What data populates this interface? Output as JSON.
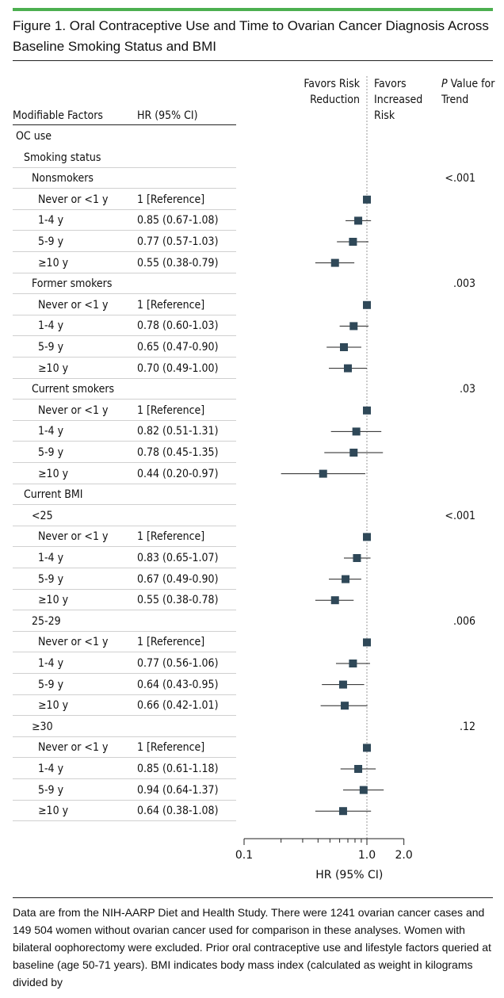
{
  "figure": {
    "title": "Figure 1. Oral Contraceptive Use and Time to Ovarian Cancer Diagnosis Across Baseline Smoking Status and BMI",
    "headers": {
      "factors": "Modifiable Factors",
      "hr": "HR (95% CI)",
      "favors_left": "Favors Risk Reduction",
      "favors_right": "Favors Increased Risk",
      "p_value_italic": "P",
      "p_value_rest": " Value for Trend"
    },
    "footnote": "Data are from the NIH-AARP Diet and Health Study. There were 1241 ovarian cancer cases and 149 504 women without ovarian cancer used for comparison in these analyses. Women with bilateral oophorectomy were excluded. Prior oral contraceptive use and lifestyle factors queried at baseline (age 50-71 years). BMI indicates body mass index (calculated as weight in kilograms divided by"
  },
  "chart_data": {
    "type": "forest",
    "xlabel": "HR (95% CI)",
    "xscale": "log",
    "xlim": [
      0.1,
      2.0
    ],
    "xticks": [
      {
        "value": 0.1,
        "label": "0.1"
      },
      {
        "value": 1.0,
        "label": "1.0"
      },
      {
        "value": 2.0,
        "label": "2.0"
      }
    ],
    "reference_line": 1.0,
    "rows": [
      {
        "label": "OC use",
        "level": 0
      },
      {
        "label": "Smoking status",
        "level": 1
      },
      {
        "label": "Nonsmokers",
        "level": 2,
        "p": "<.001"
      },
      {
        "label": "Never or <1 y",
        "level": 3,
        "hr_text": "1 [Reference]",
        "hr": 1.0
      },
      {
        "label": "1-4 y",
        "level": 3,
        "hr_text": "0.85 (0.67-1.08)",
        "hr": 0.85,
        "lo": 0.67,
        "hi": 1.08
      },
      {
        "label": "5-9 y",
        "level": 3,
        "hr_text": "0.77 (0.57-1.03)",
        "hr": 0.77,
        "lo": 0.57,
        "hi": 1.03
      },
      {
        "label": "≥10 y",
        "level": 3,
        "hr_text": "0.55 (0.38-0.79)",
        "hr": 0.55,
        "lo": 0.38,
        "hi": 0.79
      },
      {
        "label": "Former smokers",
        "level": 2,
        "p": ".003"
      },
      {
        "label": "Never or <1 y",
        "level": 3,
        "hr_text": "1 [Reference]",
        "hr": 1.0
      },
      {
        "label": "1-4 y",
        "level": 3,
        "hr_text": "0.78 (0.60-1.03)",
        "hr": 0.78,
        "lo": 0.6,
        "hi": 1.03
      },
      {
        "label": "5-9 y",
        "level": 3,
        "hr_text": "0.65 (0.47-0.90)",
        "hr": 0.65,
        "lo": 0.47,
        "hi": 0.9
      },
      {
        "label": "≥10 y",
        "level": 3,
        "hr_text": "0.70 (0.49-1.00)",
        "hr": 0.7,
        "lo": 0.49,
        "hi": 1.0
      },
      {
        "label": "Current smokers",
        "level": 2,
        "p": ".03"
      },
      {
        "label": "Never or <1 y",
        "level": 3,
        "hr_text": "1 [Reference]",
        "hr": 1.0
      },
      {
        "label": "1-4 y",
        "level": 3,
        "hr_text": "0.82 (0.51-1.31)",
        "hr": 0.82,
        "lo": 0.51,
        "hi": 1.31
      },
      {
        "label": "5-9 y",
        "level": 3,
        "hr_text": "0.78 (0.45-1.35)",
        "hr": 0.78,
        "lo": 0.45,
        "hi": 1.35
      },
      {
        "label": "≥10 y",
        "level": 3,
        "hr_text": "0.44 (0.20-0.97)",
        "hr": 0.44,
        "lo": 0.2,
        "hi": 0.97
      },
      {
        "label": "Current BMI",
        "level": 1
      },
      {
        "label": "<25",
        "level": 2,
        "p": "<.001"
      },
      {
        "label": "Never or <1 y",
        "level": 3,
        "hr_text": "1 [Reference]",
        "hr": 1.0
      },
      {
        "label": "1-4 y",
        "level": 3,
        "hr_text": "0.83 (0.65-1.07)",
        "hr": 0.83,
        "lo": 0.65,
        "hi": 1.07
      },
      {
        "label": "5-9 y",
        "level": 3,
        "hr_text": "0.67 (0.49-0.90)",
        "hr": 0.67,
        "lo": 0.49,
        "hi": 0.9
      },
      {
        "label": "≥10 y",
        "level": 3,
        "hr_text": "0.55 (0.38-0.78)",
        "hr": 0.55,
        "lo": 0.38,
        "hi": 0.78
      },
      {
        "label": "25-29",
        "level": 2,
        "p": ".006"
      },
      {
        "label": "Never or <1 y",
        "level": 3,
        "hr_text": "1 [Reference]",
        "hr": 1.0
      },
      {
        "label": "1-4 y",
        "level": 3,
        "hr_text": "0.77 (0.56-1.06)",
        "hr": 0.77,
        "lo": 0.56,
        "hi": 1.06
      },
      {
        "label": "5-9 y",
        "level": 3,
        "hr_text": "0.64 (0.43-0.95)",
        "hr": 0.64,
        "lo": 0.43,
        "hi": 0.95
      },
      {
        "label": "≥10 y",
        "level": 3,
        "hr_text": "0.66 (0.42-1.01)",
        "hr": 0.66,
        "lo": 0.42,
        "hi": 1.01
      },
      {
        "label": "≥30",
        "level": 2,
        "p": ".12"
      },
      {
        "label": "Never or <1 y",
        "level": 3,
        "hr_text": "1 [Reference]",
        "hr": 1.0
      },
      {
        "label": "1-4 y",
        "level": 3,
        "hr_text": "0.85 (0.61-1.18)",
        "hr": 0.85,
        "lo": 0.61,
        "hi": 1.18
      },
      {
        "label": "5-9 y",
        "level": 3,
        "hr_text": "0.94 (0.64-1.37)",
        "hr": 0.94,
        "lo": 0.64,
        "hi": 1.37
      },
      {
        "label": "≥10 y",
        "level": 3,
        "hr_text": "0.64 (0.38-1.08)",
        "hr": 0.64,
        "lo": 0.38,
        "hi": 1.08
      }
    ],
    "colors": {
      "marker": "#2f4858",
      "line": "#222222",
      "reference": "#9a9a9a"
    }
  }
}
